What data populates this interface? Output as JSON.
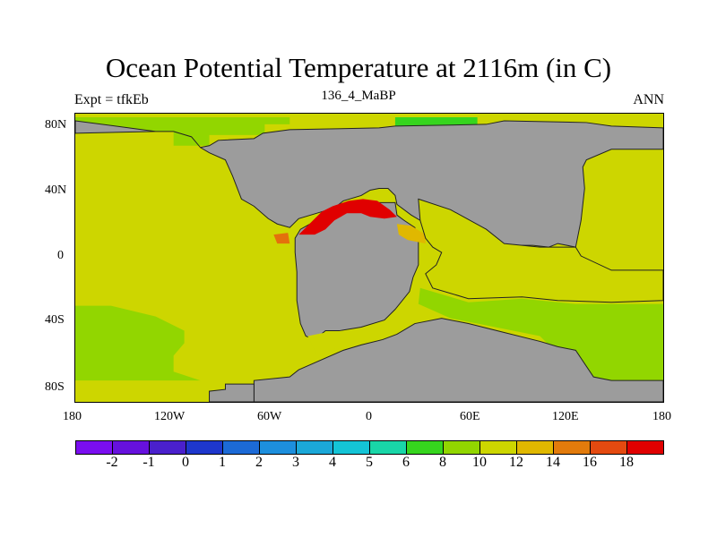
{
  "title": "Ocean Potential Temperature at 2116m (in C)",
  "subtitle_left": "Expt = tfkEb",
  "subtitle_center": "136_4_MaBP",
  "subtitle_right": "ANN",
  "lon_ticks": [
    "180",
    "120W",
    "60W",
    "0",
    "60E",
    "120E",
    "180"
  ],
  "lat_ticks": [
    "80N",
    "40N",
    "0",
    "40S",
    "80S"
  ],
  "colorbar": {
    "colors": [
      "#7a0ef0",
      "#6611dd",
      "#4a20cc",
      "#1e37cc",
      "#1c6ad6",
      "#1d8fdd",
      "#1ba8d8",
      "#14c4d6",
      "#19d6a8",
      "#36d51e",
      "#92d600",
      "#cdd600",
      "#e0b800",
      "#e27b0c",
      "#e44a10",
      "#e00000"
    ],
    "labels": [
      "-2",
      "-1",
      "0",
      "1",
      "2",
      "3",
      "4",
      "5",
      "6",
      "8",
      "10",
      "12",
      "14",
      "16",
      "18"
    ]
  },
  "map_colors": {
    "land": "#9c9c9c",
    "temp_10": "#92d600",
    "temp_12": "#cdd600",
    "temp_8": "#36d51e",
    "temp_14": "#e0b800",
    "temp_16": "#e4700c",
    "temp_18": "#e00000"
  }
}
